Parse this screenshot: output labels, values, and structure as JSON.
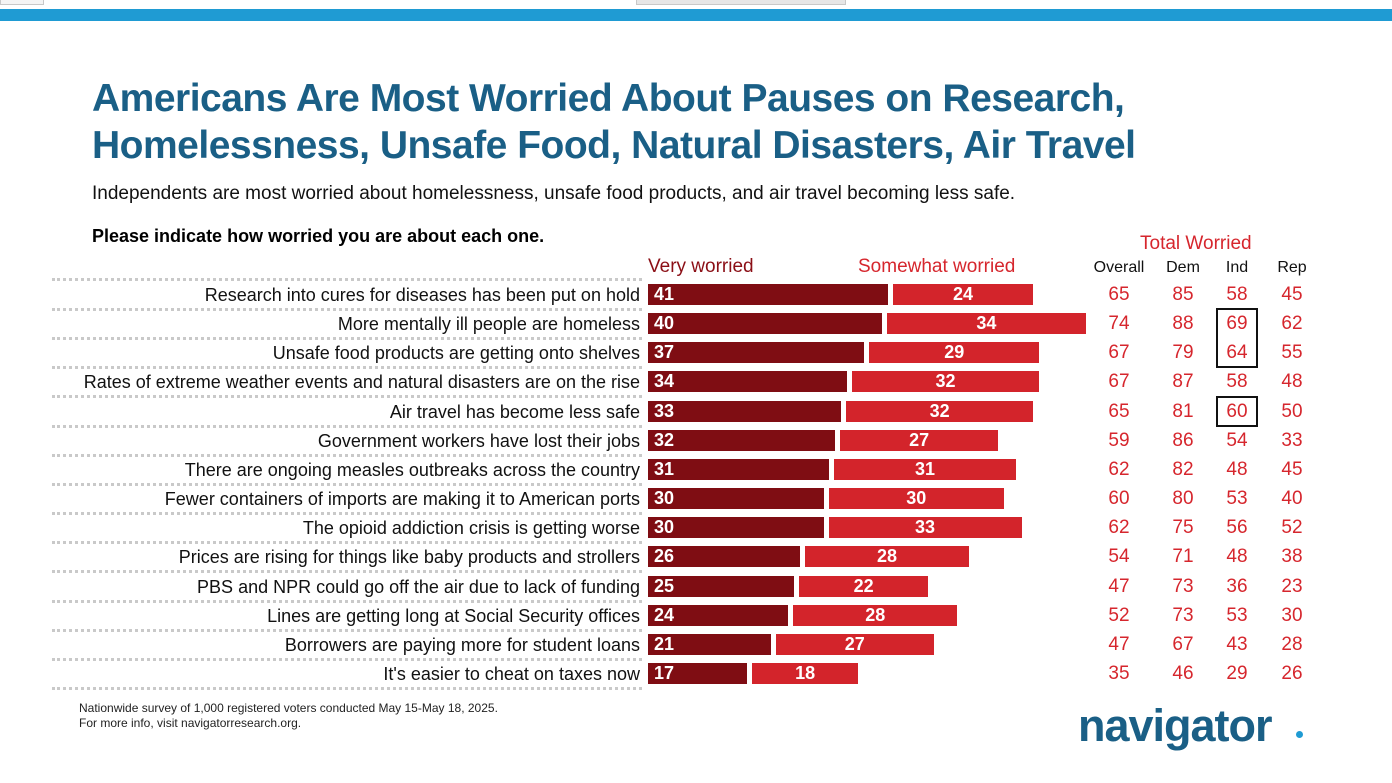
{
  "header": {
    "title_line1": "Americans Are Most Worried About Pauses on Research,",
    "title_line2": "Homelessness, Unsafe Food, Natural Disasters, Air Travel",
    "subtitle": "Independents are most worried about homelessness, unsafe food products, and air travel becoming less safe.",
    "question": "Please indicate how worried you are about each one."
  },
  "legend": {
    "very": "Very worried",
    "somewhat": "Somewhat worried"
  },
  "total_worried": {
    "title": "Total Worried",
    "columns": [
      "Overall",
      "Dem",
      "Ind",
      "Rep"
    ]
  },
  "colors": {
    "very": "#7f0d13",
    "somewhat": "#d3242b",
    "accent_red": "#d6262d",
    "title_blue": "#1a5f86",
    "top_bar": "#1f9bd3"
  },
  "chart_data": {
    "type": "bar",
    "orientation": "horizontal-stacked",
    "categories": [
      "Research into cures for diseases has been put on hold",
      "More mentally ill people are homeless",
      "Unsafe food products are getting onto shelves",
      "Rates of extreme weather events and natural disasters are on the rise",
      "Air travel has become less safe",
      "Government workers have lost their jobs",
      "There are ongoing measles outbreaks across the country",
      "Fewer containers of imports are making it to American ports",
      "The opioid addiction crisis is getting worse",
      "Prices are rising for things like baby products and strollers",
      "PBS and NPR could go off the air due to lack of funding",
      "Lines are getting long at Social Security offices",
      "Borrowers are paying more for student loans",
      "It's easier to cheat on taxes now"
    ],
    "series": [
      {
        "name": "Very worried",
        "values": [
          41,
          40,
          37,
          34,
          33,
          32,
          31,
          30,
          30,
          26,
          25,
          24,
          21,
          17
        ]
      },
      {
        "name": "Somewhat worried",
        "values": [
          24,
          34,
          29,
          32,
          32,
          27,
          31,
          30,
          33,
          28,
          22,
          28,
          27,
          18
        ]
      }
    ],
    "table": {
      "Overall": [
        65,
        74,
        67,
        67,
        65,
        59,
        62,
        60,
        62,
        54,
        47,
        52,
        47,
        35
      ],
      "Dem": [
        85,
        88,
        79,
        87,
        81,
        86,
        82,
        80,
        75,
        71,
        73,
        73,
        67,
        46
      ],
      "Ind": [
        58,
        69,
        64,
        58,
        60,
        54,
        48,
        53,
        56,
        48,
        36,
        53,
        43,
        29
      ],
      "Rep": [
        45,
        62,
        55,
        48,
        50,
        33,
        45,
        40,
        52,
        38,
        23,
        30,
        28,
        26
      ]
    },
    "highlighted_ind_rows": [
      1,
      2,
      4
    ]
  },
  "footnote": {
    "line1": "Nationwide survey of 1,000 registered voters conducted May 15-May 18, 2025.",
    "line2": "For more info, visit navigatorresearch.org."
  },
  "logo": {
    "text": "navigator"
  }
}
